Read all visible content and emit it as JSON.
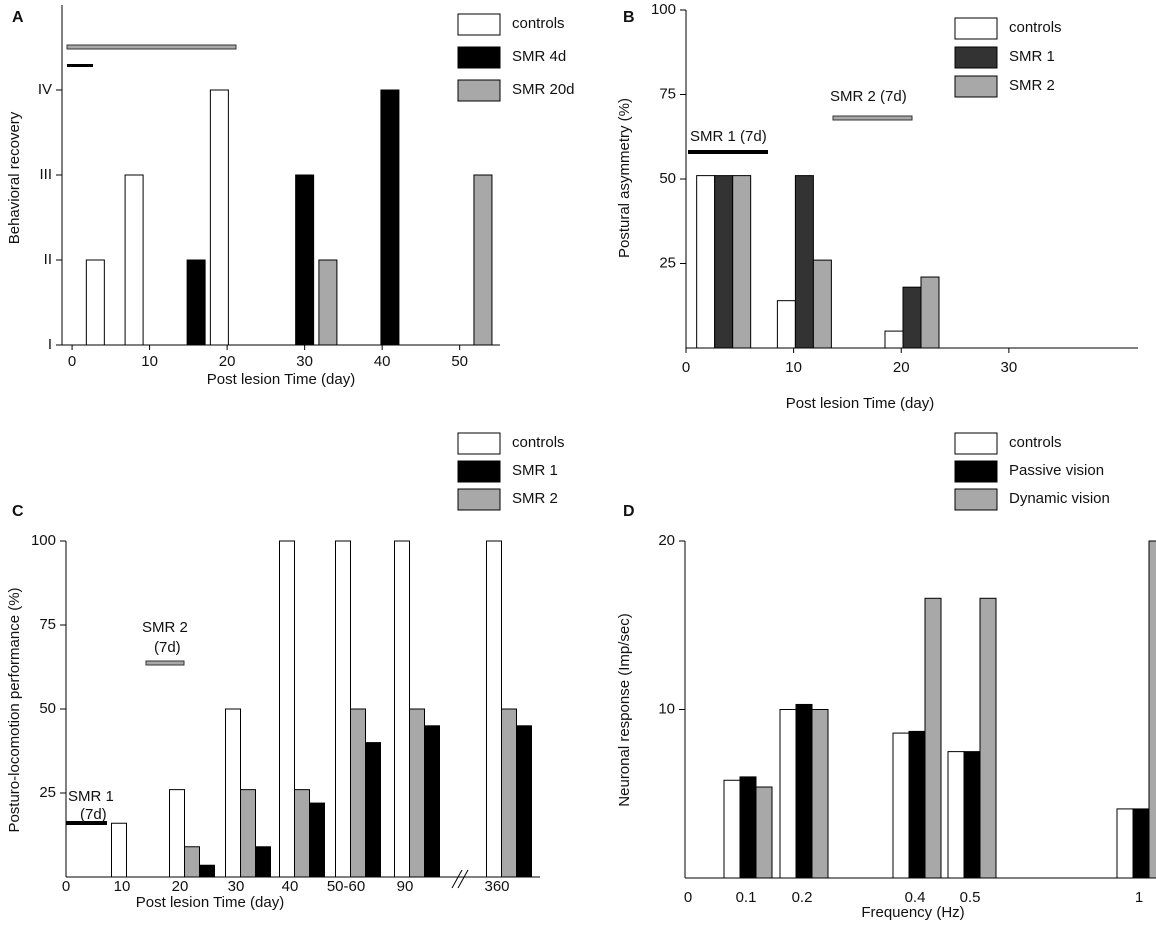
{
  "chart_data": [
    {
      "type": "bar",
      "panel": "A",
      "ylabel": "Behavioral recovery",
      "xlabel": "Post lesion Time (day)",
      "xlim": [
        -1.3,
        55.2
      ],
      "xticks": [
        0,
        10,
        20,
        30,
        40,
        50
      ],
      "ylim": [
        1,
        5
      ],
      "yticks": [
        {
          "value": 1,
          "label": "I"
        },
        {
          "value": 2,
          "label": "II"
        },
        {
          "value": 3,
          "label": "III"
        },
        {
          "value": 4,
          "label": "IV"
        }
      ],
      "series": [
        {
          "name": "controls",
          "color": "#ffffff",
          "x": [
            3,
            8,
            19
          ],
          "values": [
            2,
            3,
            4
          ]
        },
        {
          "name": "SMR 4d",
          "color": "#000000",
          "x": [
            16,
            30,
            41
          ],
          "values": [
            2,
            3,
            4
          ]
        },
        {
          "name": "SMR 20d",
          "color": "#a8a8a8",
          "x": [
            33,
            53
          ],
          "values": [
            2,
            3
          ]
        }
      ]
    },
    {
      "type": "bar",
      "panel": "B",
      "ylabel": "Postural asymmetry (%)",
      "xlabel": "Post lesion Time (day)",
      "xlim": [
        0,
        42
      ],
      "xticks": [
        0,
        10,
        20,
        30
      ],
      "ylim": [
        0,
        100
      ],
      "yticks": [
        25,
        50,
        75,
        100
      ],
      "x": [
        3.5,
        11,
        21
      ],
      "annotations": [
        "SMR 1 (7d)",
        "SMR 2 (7d)"
      ],
      "series": [
        {
          "name": "controls",
          "color": "#ffffff",
          "values": [
            51,
            14,
            5
          ]
        },
        {
          "name": "SMR 1",
          "color": "#333333",
          "values": [
            51,
            51,
            18
          ]
        },
        {
          "name": "SMR 2",
          "color": "#a8a8a8",
          "values": [
            51,
            26,
            21
          ]
        }
      ]
    },
    {
      "type": "bar",
      "panel": "C",
      "ylabel": "Posturo-locomotion performance (%)",
      "xlabel": "Post lesion Time (day)",
      "categories": [
        "0",
        "10",
        "20",
        "30",
        "40",
        "50-60",
        "90",
        "360"
      ],
      "ylim": [
        0,
        100
      ],
      "yticks": [
        25,
        50,
        75,
        100
      ],
      "annotations": [
        "SMR 1",
        "(7d)",
        "SMR 2",
        "(7d)"
      ],
      "series": [
        {
          "name": "controls",
          "color": "#ffffff",
          "values": [
            null,
            16,
            26,
            50,
            100,
            100,
            100,
            100
          ]
        },
        {
          "name": "SMR 1",
          "color": "#000000",
          "values": [
            null,
            null,
            3.5,
            9,
            22,
            40,
            45,
            45
          ]
        },
        {
          "name": "SMR 2",
          "color": "#a8a8a8",
          "values": [
            null,
            null,
            9,
            26,
            26,
            50,
            50,
            50
          ]
        }
      ]
    },
    {
      "type": "bar",
      "panel": "D",
      "ylabel": "Neuronal response (Imp/sec)",
      "xlabel": "Frequency (Hz)",
      "categories": [
        "0",
        "0.1",
        "0.2",
        "0.4",
        "0.5",
        "1"
      ],
      "ylim": [
        0,
        20
      ],
      "yticks": [
        10,
        20
      ],
      "series": [
        {
          "name": "controls",
          "color": "#ffffff",
          "values": [
            null,
            5.8,
            10,
            8.6,
            7.5,
            4.1
          ]
        },
        {
          "name": "Passive vision",
          "color": "#000000",
          "values": [
            null,
            6,
            10.3,
            8.7,
            7.5,
            4.1
          ]
        },
        {
          "name": "Dynamic vision",
          "color": "#a8a8a8",
          "values": [
            null,
            5.4,
            10,
            16.6,
            16.6,
            20
          ]
        }
      ]
    }
  ]
}
